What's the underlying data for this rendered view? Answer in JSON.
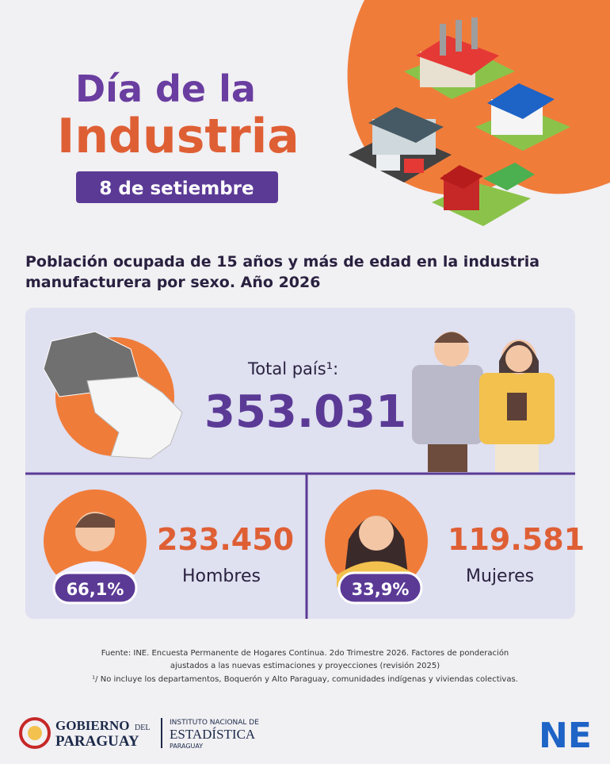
{
  "header": {
    "title_line1": "Día de la",
    "title_line2": "Industria",
    "date": "8 de setiembre"
  },
  "subtitle": [
    "Población ocupada de 15 años y más de edad en la industria",
    "manufacturera por sexo. Año 2026"
  ],
  "total": {
    "label": "Total país¹:",
    "value": "353.031"
  },
  "men": {
    "value": "233.450",
    "label": "Hombres",
    "percent": "66,1%"
  },
  "women": {
    "value": "119.581",
    "label": "Mujeres",
    "percent": "33,9%"
  },
  "footer": {
    "source": [
      "Fuente: INE. Encuesta Permanente de Hogares Continua. 2do Trimestre 2026. Factores de ponderación",
      "ajustados a las nuevas estimaciones y proyecciones (revisión 2025)"
    ],
    "note": "¹/ No incluye los departamentos, Boquerón y Alto Paraguay, comunidades indígenas y viviendas colectivas."
  },
  "logos": {
    "gov_line1": "GOBIERNO",
    "gov_del": "DEL",
    "gov_line2": "PARAGUAY",
    "ine_line1": "INSTITUTO NACIONAL DE",
    "ine_line2": "ESTADÍSTICA",
    "ine_line3": "PARAGUAY",
    "ine_mark": "NE"
  }
}
